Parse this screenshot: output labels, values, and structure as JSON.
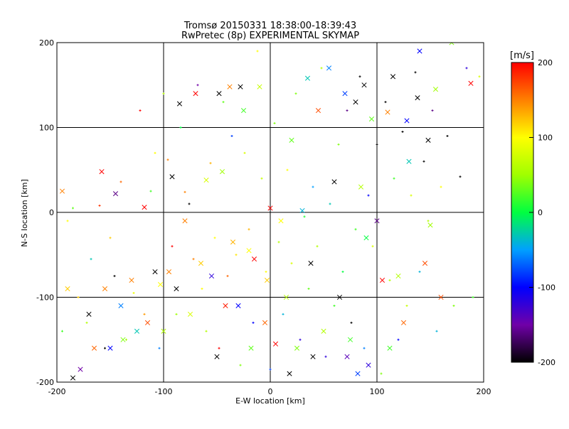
{
  "chart_data": {
    "type": "scatter",
    "title": "Tromsø 20150331 18:38:00-18:39:43",
    "subtitle": "RwPretec (8p) EXPERIMENTAL SKYMAP",
    "xlabel": "E-W location [km]",
    "ylabel": "N-S location [km]",
    "xlim": [
      -200,
      200
    ],
    "ylim": [
      -200,
      200
    ],
    "xticks": [
      -200,
      -100,
      0,
      100,
      200
    ],
    "yticks": [
      -200,
      -100,
      0,
      100,
      200
    ],
    "xtick_labels": [
      "-200",
      "-100",
      "0",
      "100",
      "200"
    ],
    "ytick_labels": [
      "-200",
      "-100",
      "0",
      "100",
      "200"
    ],
    "grid": true,
    "colorbar": {
      "label": "[m/s]",
      "range": [
        -200,
        200
      ],
      "ticks": [
        200,
        100,
        0,
        -100,
        -200
      ],
      "tick_labels": [
        "200",
        "100",
        "0",
        "-100",
        "-200"
      ],
      "colormap": "rainbow-black-to-red",
      "stops": [
        {
          "v": -200,
          "color": "#000000"
        },
        {
          "v": -150,
          "color": "#7000a8"
        },
        {
          "v": -100,
          "color": "#0000ff"
        },
        {
          "v": -50,
          "color": "#00a0ff"
        },
        {
          "v": 0,
          "color": "#00ff40"
        },
        {
          "v": 50,
          "color": "#a0ff00"
        },
        {
          "v": 100,
          "color": "#ffff00"
        },
        {
          "v": 150,
          "color": "#ff8000"
        },
        {
          "v": 200,
          "color": "#ff0000"
        }
      ]
    },
    "series": [
      {
        "marker": "x",
        "points": [
          [
            -195,
            25,
            150
          ],
          [
            -190,
            -90,
            120
          ],
          [
            -185,
            -195,
            -200
          ],
          [
            -178,
            -185,
            -150
          ],
          [
            -170,
            -120,
            -200
          ],
          [
            -165,
            -160,
            160
          ],
          [
            -158,
            48,
            200
          ],
          [
            -155,
            -90,
            150
          ],
          [
            -150,
            -160,
            -100
          ],
          [
            -145,
            22,
            -160
          ],
          [
            -140,
            -110,
            -60
          ],
          [
            -138,
            -150,
            40
          ],
          [
            -130,
            -80,
            150
          ],
          [
            -125,
            -140,
            -30
          ],
          [
            -118,
            6,
            200
          ],
          [
            -115,
            -130,
            170
          ],
          [
            -108,
            -70,
            -200
          ],
          [
            -103,
            -85,
            100
          ],
          [
            -100,
            -140,
            60
          ],
          [
            -95,
            -70,
            150
          ],
          [
            -92,
            42,
            -200
          ],
          [
            -88,
            -90,
            -200
          ],
          [
            -85,
            128,
            -200
          ],
          [
            -80,
            -10,
            150
          ],
          [
            -75,
            -120,
            80
          ],
          [
            -70,
            140,
            200
          ],
          [
            -65,
            -60,
            120
          ],
          [
            -60,
            38,
            80
          ],
          [
            -55,
            -75,
            -120
          ],
          [
            -50,
            -170,
            -200
          ],
          [
            -48,
            140,
            -200
          ],
          [
            -45,
            48,
            50
          ],
          [
            -42,
            -110,
            190
          ],
          [
            -38,
            148,
            150
          ],
          [
            -35,
            -35,
            130
          ],
          [
            -30,
            -110,
            -100
          ],
          [
            -28,
            148,
            -200
          ],
          [
            -25,
            120,
            20
          ],
          [
            -20,
            -45,
            100
          ],
          [
            -18,
            -160,
            30
          ],
          [
            -15,
            -55,
            200
          ],
          [
            -10,
            148,
            70
          ],
          [
            -5,
            -130,
            160
          ],
          [
            -3,
            -80,
            120
          ],
          [
            0,
            5,
            200
          ],
          [
            5,
            -155,
            200
          ],
          [
            10,
            -10,
            100
          ],
          [
            15,
            -100,
            60
          ],
          [
            18,
            -190,
            -200
          ],
          [
            20,
            85,
            30
          ],
          [
            25,
            -160,
            40
          ],
          [
            30,
            2,
            -40
          ],
          [
            35,
            158,
            -30
          ],
          [
            38,
            -60,
            -200
          ],
          [
            40,
            -170,
            -200
          ],
          [
            45,
            120,
            170
          ],
          [
            50,
            -140,
            60
          ],
          [
            55,
            170,
            -60
          ],
          [
            60,
            36,
            -200
          ],
          [
            65,
            -100,
            -200
          ],
          [
            70,
            140,
            -80
          ],
          [
            72,
            -170,
            -140
          ],
          [
            75,
            -150,
            20
          ],
          [
            80,
            130,
            -200
          ],
          [
            82,
            -190,
            -80
          ],
          [
            85,
            30,
            60
          ],
          [
            88,
            150,
            -200
          ],
          [
            90,
            -30,
            0
          ],
          [
            92,
            -180,
            -120
          ],
          [
            95,
            110,
            30
          ],
          [
            100,
            -10,
            -160
          ],
          [
            105,
            -80,
            200
          ],
          [
            110,
            118,
            150
          ],
          [
            112,
            -160,
            20
          ],
          [
            115,
            160,
            -200
          ],
          [
            120,
            -75,
            60
          ],
          [
            125,
            -130,
            160
          ],
          [
            128,
            108,
            -100
          ],
          [
            130,
            60,
            -30
          ],
          [
            138,
            135,
            -200
          ],
          [
            140,
            190,
            -100
          ],
          [
            145,
            -60,
            170
          ],
          [
            148,
            85,
            -200
          ],
          [
            150,
            -15,
            50
          ],
          [
            155,
            145,
            50
          ],
          [
            160,
            -100,
            170
          ],
          [
            170,
            200,
            40
          ],
          [
            188,
            152,
            200
          ]
        ]
      },
      {
        "marker": "+",
        "points": [
          [
            -195,
            -140,
            20
          ],
          [
            -190,
            -10,
            100
          ],
          [
            -185,
            5,
            30
          ],
          [
            -180,
            -100,
            120
          ],
          [
            -172,
            -130,
            60
          ],
          [
            -168,
            -55,
            -30
          ],
          [
            -160,
            8,
            180
          ],
          [
            -155,
            -160,
            -200
          ],
          [
            -150,
            -30,
            120
          ],
          [
            -146,
            -75,
            -200
          ],
          [
            -140,
            36,
            160
          ],
          [
            -135,
            -150,
            50
          ],
          [
            -128,
            -95,
            90
          ],
          [
            -122,
            120,
            200
          ],
          [
            -118,
            -120,
            140
          ],
          [
            -112,
            25,
            20
          ],
          [
            -108,
            70,
            100
          ],
          [
            -104,
            -160,
            -60
          ],
          [
            -100,
            140,
            60
          ],
          [
            -96,
            62,
            150
          ],
          [
            -92,
            -40,
            200
          ],
          [
            -88,
            -120,
            50
          ],
          [
            -84,
            100,
            0
          ],
          [
            -80,
            24,
            150
          ],
          [
            -76,
            10,
            -200
          ],
          [
            -72,
            -55,
            150
          ],
          [
            -68,
            150,
            -150
          ],
          [
            -64,
            -90,
            100
          ],
          [
            -60,
            -140,
            60
          ],
          [
            -56,
            58,
            130
          ],
          [
            -52,
            -30,
            100
          ],
          [
            -48,
            -160,
            200
          ],
          [
            -44,
            130,
            30
          ],
          [
            -40,
            -75,
            160
          ],
          [
            -36,
            90,
            -80
          ],
          [
            -32,
            -50,
            110
          ],
          [
            -28,
            -180,
            40
          ],
          [
            -24,
            70,
            80
          ],
          [
            -20,
            -20,
            130
          ],
          [
            -16,
            -130,
            -100
          ],
          [
            -12,
            190,
            100
          ],
          [
            -8,
            40,
            70
          ],
          [
            -4,
            -70,
            100
          ],
          [
            0,
            -185,
            -80
          ],
          [
            4,
            105,
            40
          ],
          [
            8,
            -35,
            60
          ],
          [
            12,
            -120,
            -40
          ],
          [
            16,
            50,
            100
          ],
          [
            20,
            -60,
            80
          ],
          [
            24,
            140,
            40
          ],
          [
            28,
            -150,
            -120
          ],
          [
            32,
            -5,
            10
          ],
          [
            36,
            -90,
            30
          ],
          [
            40,
            30,
            -50
          ],
          [
            44,
            -40,
            60
          ],
          [
            48,
            170,
            60
          ],
          [
            52,
            -170,
            -120
          ],
          [
            56,
            10,
            -30
          ],
          [
            60,
            -110,
            20
          ],
          [
            64,
            80,
            40
          ],
          [
            68,
            -70,
            0
          ],
          [
            72,
            120,
            -160
          ],
          [
            76,
            -130,
            -200
          ],
          [
            80,
            -20,
            20
          ],
          [
            84,
            160,
            -200
          ],
          [
            88,
            -160,
            -60
          ],
          [
            92,
            20,
            -100
          ],
          [
            96,
            -40,
            80
          ],
          [
            100,
            80,
            -200
          ],
          [
            104,
            -190,
            40
          ],
          [
            108,
            130,
            -200
          ],
          [
            112,
            -80,
            60
          ],
          [
            116,
            40,
            20
          ],
          [
            120,
            -150,
            -100
          ],
          [
            124,
            95,
            -200
          ],
          [
            128,
            -110,
            70
          ],
          [
            132,
            20,
            80
          ],
          [
            136,
            165,
            -200
          ],
          [
            140,
            -70,
            -40
          ],
          [
            144,
            60,
            -200
          ],
          [
            148,
            -10,
            60
          ],
          [
            152,
            120,
            -160
          ],
          [
            156,
            -140,
            -40
          ],
          [
            160,
            30,
            100
          ],
          [
            166,
            90,
            -200
          ],
          [
            172,
            -110,
            40
          ],
          [
            178,
            42,
            -200
          ],
          [
            184,
            170,
            -120
          ],
          [
            190,
            -100,
            20
          ],
          [
            196,
            160,
            80
          ]
        ]
      }
    ]
  }
}
